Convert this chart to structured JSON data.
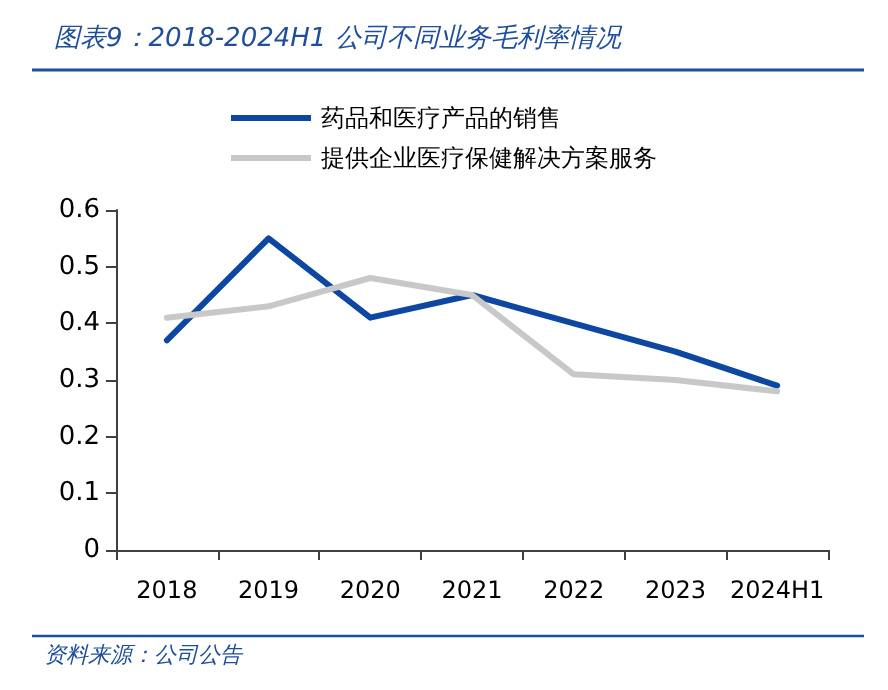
{
  "chart_data": {
    "type": "line",
    "title": "图表9：2018-2024H1 公司不同业务毛利率情况",
    "categories": [
      "2018",
      "2019",
      "2020",
      "2021",
      "2022",
      "2023",
      "2024H1"
    ],
    "series": [
      {
        "name": "药品和医疗产品的销售",
        "color": "#0d47a1",
        "values": [
          0.37,
          0.55,
          0.41,
          0.45,
          0.4,
          0.35,
          0.29
        ]
      },
      {
        "name": "提供企业医疗保健解决方案服务",
        "color": "#c8c8c8",
        "values": [
          0.41,
          0.43,
          0.48,
          0.45,
          0.31,
          0.3,
          0.28
        ]
      }
    ],
    "ylim": [
      0,
      0.6
    ],
    "yticks": [
      0,
      0.1,
      0.2,
      0.3,
      0.4,
      0.5,
      0.6
    ],
    "grid": false,
    "legend": "top",
    "marker": "none",
    "line_style": "solid",
    "annotations": [
      "资料来源：公司公告"
    ]
  }
}
